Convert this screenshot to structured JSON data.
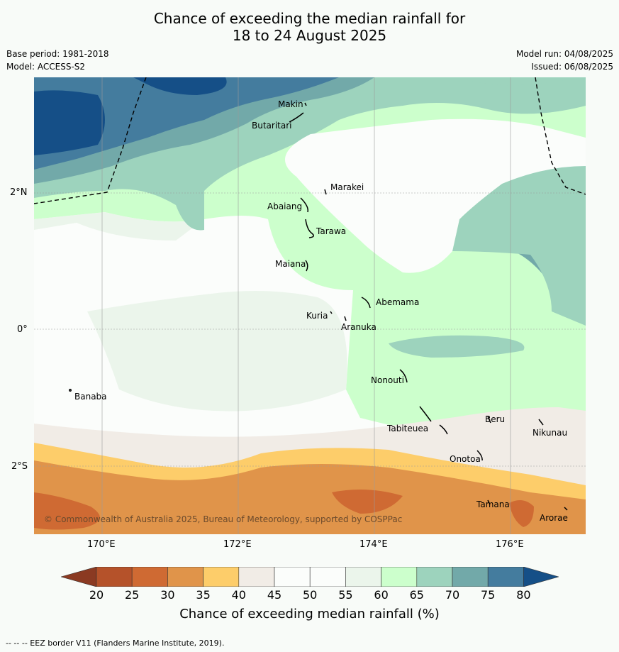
{
  "title": {
    "line1": "Chance of exceeding the median rainfall for",
    "line2": "18 to 24 August 2025"
  },
  "meta": {
    "base_period": "Base period: 1981-2018",
    "model": "Model: ACCESS-S2",
    "model_run": "Model run: 04/08/2025",
    "issued": "Issued: 06/08/2025"
  },
  "axes": {
    "lat_ticks": [
      "2°N",
      "0°",
      "2°S"
    ],
    "lon_ticks": [
      "170°E",
      "172°E",
      "174°E",
      "176°E"
    ]
  },
  "places": [
    "Makin",
    "Butaritari",
    "Marakei",
    "Abaiang",
    "Tarawa",
    "Maiana",
    "Abemama",
    "Kuria",
    "Aranuka",
    "Banaba",
    "Nonouti",
    "Beru",
    "Nikunau",
    "Tabiteuea",
    "Onotoa",
    "Tamana",
    "Arorae"
  ],
  "copyright": "© Commonwealth of Australia 2025, Bureau of Meteorology, supported by COSPPac",
  "colorbar": {
    "labels": [
      "20",
      "25",
      "30",
      "35",
      "40",
      "45",
      "50",
      "55",
      "60",
      "65",
      "70",
      "75",
      "80"
    ],
    "colors": [
      "#b5522a",
      "#cf6a33",
      "#e0944a",
      "#fdcd6a",
      "#f1ece6",
      "#fbfdfb",
      "#fbfdfb",
      "#ebf5eb",
      "#ccffcc",
      "#9dd3bd",
      "#72a9a9",
      "#447c9e"
    ],
    "under_color": "#8b3a22",
    "over_color": "#154f87",
    "title": "Chance of exceeding median rainfall (%)"
  },
  "footer": "--  --  -- EEZ border V11 (Flanders Marine Institute, 2019)."
}
